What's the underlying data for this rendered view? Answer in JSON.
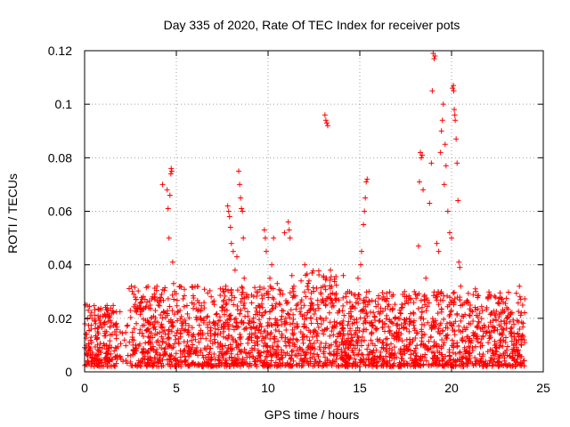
{
  "chart_data": {
    "type": "scatter",
    "title": "Day 335 of 2020, Rate Of TEC Index for receiver pots",
    "xlabel": "GPS time / hours",
    "ylabel": "ROTI / TECUs",
    "xlim": [
      0,
      25
    ],
    "ylim": [
      0,
      0.12
    ],
    "xticks": [
      0,
      5,
      10,
      15,
      20,
      25
    ],
    "yticks": [
      0,
      0.02,
      0.04,
      0.06,
      0.08,
      0.1,
      0.12
    ],
    "xtick_labels": [
      "0",
      "5",
      "10",
      "15",
      "20",
      "25"
    ],
    "ytick_labels": [
      "0",
      "0.02",
      "0.04",
      "0.06",
      "0.08",
      "0.1",
      "0.12"
    ],
    "grid": true,
    "marker": "+",
    "series_color": "#ff0000",
    "background_band": {
      "description_free": true,
      "segments": [
        {
          "x0": 0.0,
          "x1": 2.4,
          "ymin": 0.002,
          "ymax": 0.025
        },
        {
          "x0": 2.4,
          "x1": 12.0,
          "ymin": 0.002,
          "ymax": 0.032
        },
        {
          "x0": 12.0,
          "x1": 14.0,
          "ymin": 0.002,
          "ymax": 0.038
        },
        {
          "x0": 14.0,
          "x1": 24.0,
          "ymin": 0.002,
          "ymax": 0.03
        }
      ]
    },
    "points": [
      [
        0.05,
        0.025
      ],
      [
        0.2,
        0.023
      ],
      [
        0.3,
        0.021
      ],
      [
        0.4,
        0.02
      ],
      [
        0.6,
        0.018
      ],
      [
        1.2,
        0.015
      ],
      [
        1.5,
        0.014
      ],
      [
        2.55,
        0.032
      ],
      [
        2.6,
        0.03
      ],
      [
        2.8,
        0.027
      ],
      [
        3.4,
        0.026
      ],
      [
        3.7,
        0.028
      ],
      [
        4.2,
        0.029
      ],
      [
        4.25,
        0.07
      ],
      [
        4.5,
        0.068
      ],
      [
        4.55,
        0.061
      ],
      [
        4.6,
        0.05
      ],
      [
        4.65,
        0.066
      ],
      [
        4.7,
        0.074
      ],
      [
        4.72,
        0.076
      ],
      [
        4.75,
        0.075
      ],
      [
        4.8,
        0.041
      ],
      [
        4.85,
        0.033
      ],
      [
        4.9,
        0.03
      ],
      [
        7.4,
        0.031
      ],
      [
        7.6,
        0.03
      ],
      [
        7.7,
        0.032
      ],
      [
        7.8,
        0.062
      ],
      [
        7.85,
        0.06
      ],
      [
        7.9,
        0.058
      ],
      [
        7.95,
        0.054
      ],
      [
        8.0,
        0.048
      ],
      [
        8.1,
        0.045
      ],
      [
        8.2,
        0.038
      ],
      [
        8.3,
        0.043
      ],
      [
        8.4,
        0.075
      ],
      [
        8.45,
        0.07
      ],
      [
        8.5,
        0.065
      ],
      [
        8.55,
        0.061
      ],
      [
        8.6,
        0.06
      ],
      [
        8.65,
        0.05
      ],
      [
        8.7,
        0.035
      ],
      [
        8.8,
        0.028
      ],
      [
        9.7,
        0.024
      ],
      [
        9.8,
        0.053
      ],
      [
        9.85,
        0.05
      ],
      [
        9.9,
        0.045
      ],
      [
        10.0,
        0.03
      ],
      [
        10.1,
        0.035
      ],
      [
        10.2,
        0.04
      ],
      [
        10.3,
        0.05
      ],
      [
        10.5,
        0.033
      ],
      [
        10.9,
        0.052
      ],
      [
        11.1,
        0.056
      ],
      [
        11.15,
        0.053
      ],
      [
        11.2,
        0.05
      ],
      [
        11.3,
        0.036
      ],
      [
        11.8,
        0.034
      ],
      [
        12.0,
        0.04
      ],
      [
        12.4,
        0.037
      ],
      [
        13.1,
        0.096
      ],
      [
        13.15,
        0.094
      ],
      [
        13.2,
        0.093
      ],
      [
        13.25,
        0.092
      ],
      [
        13.4,
        0.038
      ],
      [
        14.1,
        0.036
      ],
      [
        14.9,
        0.035
      ],
      [
        15.05,
        0.04
      ],
      [
        15.1,
        0.045
      ],
      [
        15.2,
        0.055
      ],
      [
        15.25,
        0.06
      ],
      [
        15.3,
        0.065
      ],
      [
        15.35,
        0.071
      ],
      [
        15.4,
        0.072
      ],
      [
        15.5,
        0.03
      ],
      [
        16.3,
        0.028
      ],
      [
        18.2,
        0.047
      ],
      [
        18.25,
        0.071
      ],
      [
        18.3,
        0.082
      ],
      [
        18.35,
        0.08
      ],
      [
        18.4,
        0.081
      ],
      [
        18.45,
        0.068
      ],
      [
        18.6,
        0.035
      ],
      [
        18.8,
        0.063
      ],
      [
        18.9,
        0.078
      ],
      [
        18.95,
        0.105
      ],
      [
        19.0,
        0.119
      ],
      [
        19.05,
        0.117
      ],
      [
        19.1,
        0.118
      ],
      [
        19.2,
        0.048
      ],
      [
        19.3,
        0.045
      ],
      [
        19.4,
        0.082
      ],
      [
        19.45,
        0.09
      ],
      [
        19.5,
        0.094
      ],
      [
        19.55,
        0.1
      ],
      [
        19.6,
        0.07
      ],
      [
        19.65,
        0.085
      ],
      [
        19.7,
        0.077
      ],
      [
        19.8,
        0.06
      ],
      [
        19.9,
        0.052
      ],
      [
        20.0,
        0.05
      ],
      [
        20.05,
        0.106
      ],
      [
        20.1,
        0.107
      ],
      [
        20.12,
        0.105
      ],
      [
        20.15,
        0.098
      ],
      [
        20.18,
        0.096
      ],
      [
        20.2,
        0.094
      ],
      [
        20.25,
        0.087
      ],
      [
        20.3,
        0.078
      ],
      [
        20.35,
        0.064
      ],
      [
        20.4,
        0.041
      ],
      [
        20.45,
        0.039
      ],
      [
        20.5,
        0.032
      ],
      [
        21.3,
        0.031
      ],
      [
        22.0,
        0.028
      ],
      [
        23.7,
        0.032
      ]
    ]
  }
}
